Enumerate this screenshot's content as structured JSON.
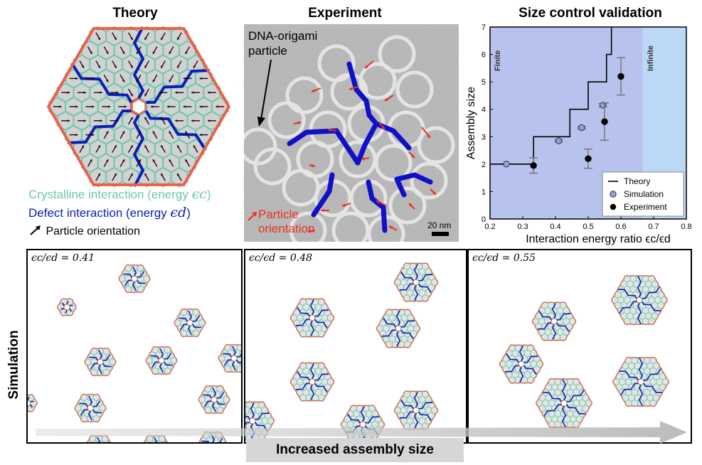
{
  "titles": {
    "theory": "Theory",
    "experiment": "Experiment",
    "validation": "Size control validation"
  },
  "theory_legend": {
    "crystalline": "Crystalline interaction (energy ",
    "crystalline_sym": "ϵc",
    "crystalline_close": ")",
    "defect": "Defect interaction (energy ",
    "defect_sym": "ϵd",
    "defect_close": ")",
    "orientation": "Particle orientation"
  },
  "experiment_labels": {
    "particle": "DNA-origami particle",
    "orientation": "Particle orientation",
    "scale": "20 nm"
  },
  "colors": {
    "crystalline": "#6cc9a8",
    "defect": "#0a1fb5",
    "rim": "#e8624a",
    "arrow_red": "#e63322",
    "finite_bg": "#b7c3ee",
    "infinite_bg": "#bcd8f7"
  },
  "chart_data": {
    "type": "scatter",
    "xlabel": "Interaction energy ratio ϵc/ϵd",
    "ylabel": "Assembly size",
    "xlim": [
      0.2,
      0.8
    ],
    "ylim": [
      0,
      7
    ],
    "xticks": [
      "0.2",
      "0.3",
      "0.4",
      "0.5",
      "0.6",
      "0.7",
      "0.8"
    ],
    "yticks": [
      "0",
      "1",
      "2",
      "3",
      "4",
      "5",
      "6",
      "7"
    ],
    "regions": [
      {
        "name": "Finite",
        "x": [
          0.2,
          0.667
        ]
      },
      {
        "name": "Infinite",
        "x": [
          0.667,
          0.8
        ]
      }
    ],
    "theory_step": {
      "x": [
        0.2,
        0.333,
        0.333,
        0.444,
        0.444,
        0.5,
        0.5,
        0.556,
        0.556,
        0.571,
        0.571
      ],
      "y": [
        2,
        2,
        3,
        3,
        4,
        4,
        5,
        5,
        6,
        6,
        7
      ]
    },
    "series": [
      {
        "name": "Theory"
      },
      {
        "name": "Simulation",
        "x": [
          0.25,
          0.41,
          0.48,
          0.545
        ],
        "y": [
          2.0,
          2.85,
          3.33,
          4.15
        ],
        "err": [
          0,
          0.04,
          0.04,
          0.06
        ]
      },
      {
        "name": "Experiment",
        "x": [
          0.333,
          0.5,
          0.55,
          0.6
        ],
        "y": [
          1.95,
          2.2,
          3.55,
          5.2
        ],
        "err": [
          0.28,
          0.35,
          0.68,
          0.68
        ]
      }
    ],
    "legend": "bottom-right"
  },
  "simulation": {
    "side_label": "Simulation",
    "panels": [
      {
        "label": "ϵc/ϵd = 0.41"
      },
      {
        "label": "ϵc/ϵd = 0.48"
      },
      {
        "label": "ϵc/ϵd = 0.55"
      }
    ],
    "arrow_label": "Increased assembly size"
  }
}
